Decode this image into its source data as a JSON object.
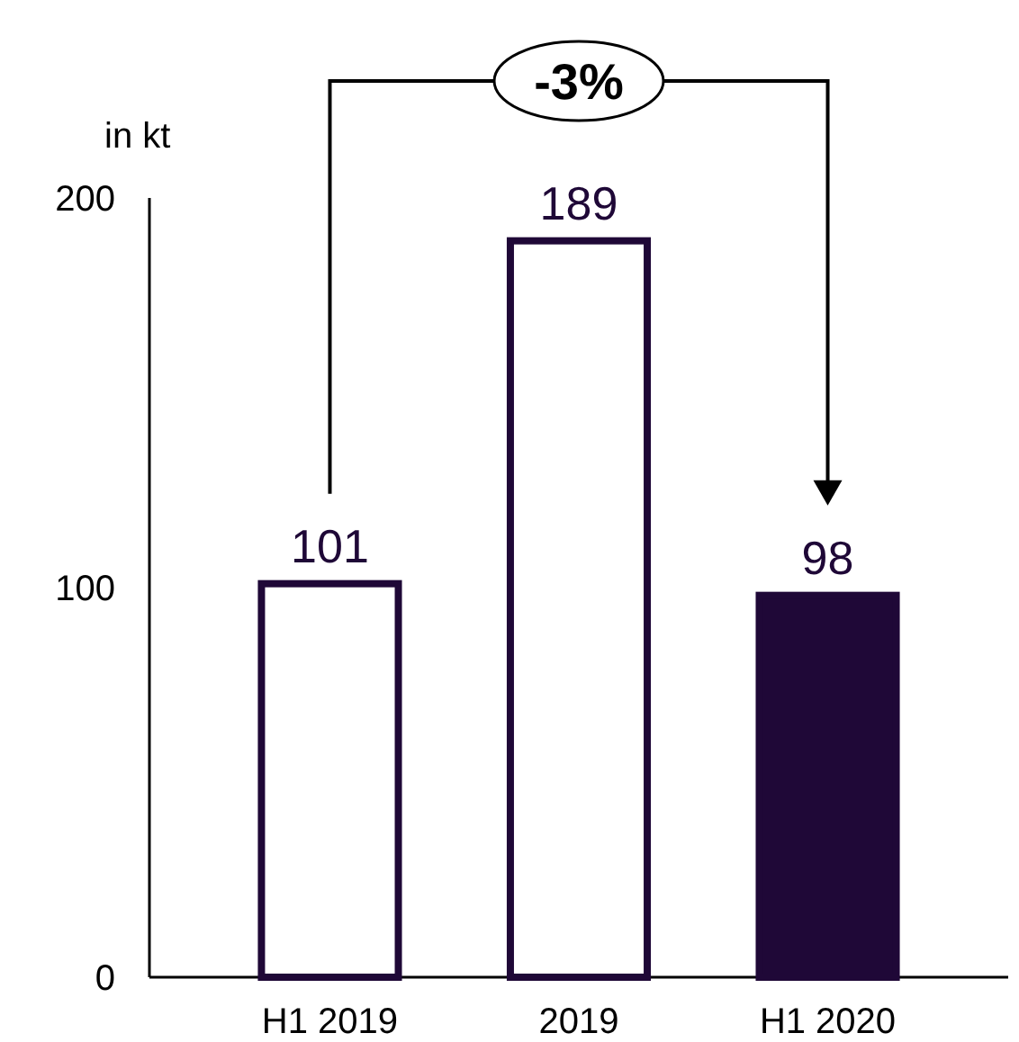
{
  "chart_data": {
    "type": "bar",
    "ylabel": "in kt",
    "categories": [
      "H1 2019",
      "2019",
      "H1 2020"
    ],
    "values": [
      101,
      189,
      98
    ],
    "color": "#1f0837",
    "colors": [
      "#ffffff",
      "#ffffff",
      "#1f0837"
    ],
    "ylim": [
      0,
      200
    ],
    "yticks": [
      0,
      100,
      200
    ],
    "data_labels": true,
    "grid": false,
    "annotations": [
      "-3%"
    ]
  }
}
